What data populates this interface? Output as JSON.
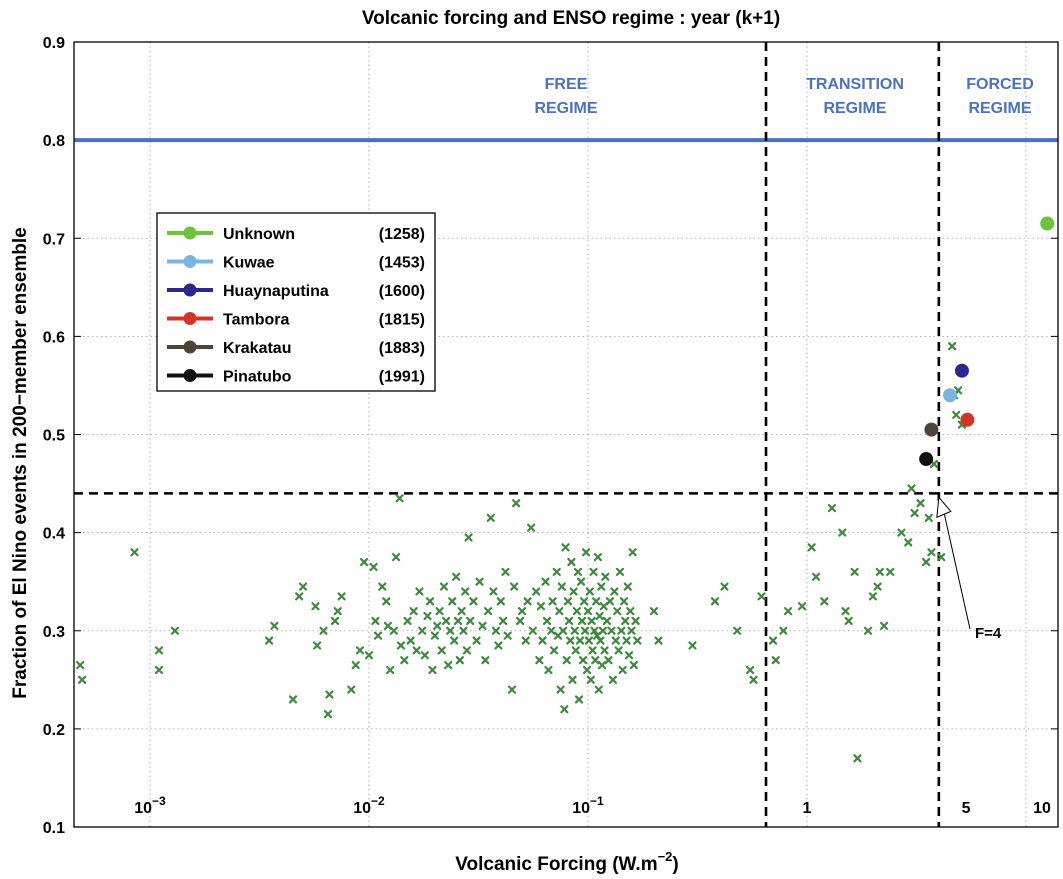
{
  "chart_data": {
    "type": "scatter",
    "title": "Volcanic forcing and ENSO regime : year (k+1)",
    "xlabel_main": "Volcanic Forcing (W.m",
    "xlabel_sup": "−2",
    "xlabel_close": ")",
    "ylabel": "Fraction of El Nino events in 200−member ensemble",
    "x_scale": "log",
    "xlim": [
      0.00045,
      14
    ],
    "ylim": [
      0.1,
      0.9
    ],
    "yticks": [
      "0.1",
      "0.2",
      "0.3",
      "0.4",
      "0.5",
      "0.6",
      "0.7",
      "0.8",
      "0.9"
    ],
    "grid": "dotted",
    "x_decade_labels": [
      {
        "text": "10",
        "sup": "−3",
        "x": 0.001
      },
      {
        "text": "10",
        "sup": "−2",
        "x": 0.01
      },
      {
        "text": "10",
        "sup": "−1",
        "x": 0.1
      },
      {
        "text": "1",
        "sup": "",
        "x": 1.0
      },
      {
        "text": "5",
        "sup": "",
        "x": 5.0
      },
      {
        "text": "10",
        "sup": "",
        "x": 10.0
      }
    ],
    "regimes": [
      {
        "line1": "FREE",
        "line2": "REGIME"
      },
      {
        "line1": "TRANSITION",
        "line2": "REGIME"
      },
      {
        "line1": "FORCED",
        "line2": "REGIME"
      }
    ],
    "reference_lines": {
      "horizontal_solid_y": 0.8,
      "horizontal_dashed_y": 0.44,
      "vertical_dashed_x": [
        0.65,
        4.0
      ]
    },
    "annotation": {
      "text": "F=4",
      "x": 4.0,
      "y": 0.44
    },
    "legend": {
      "placement": "left",
      "entries": [
        {
          "name": "Unknown",
          "year": "(1258)",
          "color": "#6cc33c",
          "x": 12.5,
          "y": 0.715
        },
        {
          "name": "Kuwae",
          "year": "(1453)",
          "color": "#7ab4e0",
          "x": 4.5,
          "y": 0.54
        },
        {
          "name": "Huaynaputina",
          "year": "(1600)",
          "color": "#2a2890",
          "x": 5.1,
          "y": 0.565
        },
        {
          "name": "Tambora",
          "year": "(1815)",
          "color": "#d23528",
          "x": 5.4,
          "y": 0.515
        },
        {
          "name": "Krakatau",
          "year": "(1883)",
          "color": "#4e4338",
          "x": 3.7,
          "y": 0.505
        },
        {
          "name": "Pinatubo",
          "year": "(1991)",
          "color": "#111111",
          "x": 3.5,
          "y": 0.475
        }
      ]
    },
    "colors": {
      "scatter": "#3d8a3d",
      "ref_line": "#4a72c0",
      "regime_text": "#4a72c0",
      "axis": "#000000"
    },
    "scatter_points": [
      [
        0.00048,
        0.265
      ],
      [
        0.00049,
        0.25
      ],
      [
        0.00085,
        0.38
      ],
      [
        0.0011,
        0.28
      ],
      [
        0.0011,
        0.26
      ],
      [
        0.0013,
        0.3
      ],
      [
        0.0035,
        0.29
      ],
      [
        0.0037,
        0.305
      ],
      [
        0.0045,
        0.23
      ],
      [
        0.0048,
        0.335
      ],
      [
        0.005,
        0.345
      ],
      [
        0.0057,
        0.325
      ],
      [
        0.0058,
        0.285
      ],
      [
        0.0062,
        0.3
      ],
      [
        0.0065,
        0.215
      ],
      [
        0.0066,
        0.235
      ],
      [
        0.007,
        0.31
      ],
      [
        0.0072,
        0.32
      ],
      [
        0.0075,
        0.335
      ],
      [
        0.0083,
        0.24
      ],
      [
        0.0087,
        0.265
      ],
      [
        0.0091,
        0.28
      ],
      [
        0.0095,
        0.37
      ],
      [
        0.01,
        0.275
      ],
      [
        0.0105,
        0.365
      ],
      [
        0.0107,
        0.31
      ],
      [
        0.011,
        0.295
      ],
      [
        0.0115,
        0.345
      ],
      [
        0.012,
        0.33
      ],
      [
        0.0122,
        0.305
      ],
      [
        0.0125,
        0.26
      ],
      [
        0.013,
        0.3
      ],
      [
        0.0133,
        0.375
      ],
      [
        0.0138,
        0.435
      ],
      [
        0.014,
        0.285
      ],
      [
        0.0145,
        0.27
      ],
      [
        0.015,
        0.31
      ],
      [
        0.0155,
        0.29
      ],
      [
        0.016,
        0.32
      ],
      [
        0.0165,
        0.28
      ],
      [
        0.017,
        0.34
      ],
      [
        0.0175,
        0.3
      ],
      [
        0.018,
        0.275
      ],
      [
        0.0185,
        0.315
      ],
      [
        0.019,
        0.33
      ],
      [
        0.0195,
        0.26
      ],
      [
        0.02,
        0.295
      ],
      [
        0.0205,
        0.305
      ],
      [
        0.021,
        0.32
      ],
      [
        0.0215,
        0.28
      ],
      [
        0.022,
        0.345
      ],
      [
        0.0225,
        0.31
      ],
      [
        0.023,
        0.265
      ],
      [
        0.0235,
        0.3
      ],
      [
        0.024,
        0.33
      ],
      [
        0.0245,
        0.29
      ],
      [
        0.025,
        0.355
      ],
      [
        0.0255,
        0.31
      ],
      [
        0.026,
        0.27
      ],
      [
        0.0265,
        0.32
      ],
      [
        0.027,
        0.3
      ],
      [
        0.0275,
        0.34
      ],
      [
        0.028,
        0.28
      ],
      [
        0.0285,
        0.395
      ],
      [
        0.029,
        0.31
      ],
      [
        0.03,
        0.33
      ],
      [
        0.031,
        0.29
      ],
      [
        0.032,
        0.35
      ],
      [
        0.033,
        0.305
      ],
      [
        0.034,
        0.27
      ],
      [
        0.035,
        0.32
      ],
      [
        0.036,
        0.415
      ],
      [
        0.037,
        0.34
      ],
      [
        0.038,
        0.3
      ],
      [
        0.039,
        0.285
      ],
      [
        0.04,
        0.33
      ],
      [
        0.041,
        0.31
      ],
      [
        0.042,
        0.36
      ],
      [
        0.043,
        0.295
      ],
      [
        0.045,
        0.24
      ],
      [
        0.046,
        0.345
      ],
      [
        0.047,
        0.43
      ],
      [
        0.049,
        0.31
      ],
      [
        0.05,
        0.32
      ],
      [
        0.052,
        0.29
      ],
      [
        0.053,
        0.33
      ],
      [
        0.055,
        0.405
      ],
      [
        0.056,
        0.3
      ],
      [
        0.058,
        0.34
      ],
      [
        0.06,
        0.27
      ],
      [
        0.061,
        0.325
      ],
      [
        0.062,
        0.29
      ],
      [
        0.064,
        0.35
      ],
      [
        0.065,
        0.31
      ],
      [
        0.066,
        0.26
      ],
      [
        0.068,
        0.3
      ],
      [
        0.069,
        0.33
      ],
      [
        0.07,
        0.28
      ],
      [
        0.072,
        0.36
      ],
      [
        0.073,
        0.295
      ],
      [
        0.074,
        0.32
      ],
      [
        0.075,
        0.24
      ],
      [
        0.076,
        0.345
      ],
      [
        0.077,
        0.3
      ],
      [
        0.078,
        0.22
      ],
      [
        0.079,
        0.385
      ],
      [
        0.08,
        0.27
      ],
      [
        0.081,
        0.33
      ],
      [
        0.082,
        0.31
      ],
      [
        0.083,
        0.29
      ],
      [
        0.084,
        0.37
      ],
      [
        0.085,
        0.25
      ],
      [
        0.086,
        0.34
      ],
      [
        0.087,
        0.3
      ],
      [
        0.088,
        0.28
      ],
      [
        0.089,
        0.32
      ],
      [
        0.09,
        0.36
      ],
      [
        0.091,
        0.23
      ],
      [
        0.092,
        0.29
      ],
      [
        0.093,
        0.35
      ],
      [
        0.094,
        0.31
      ],
      [
        0.095,
        0.27
      ],
      [
        0.096,
        0.33
      ],
      [
        0.097,
        0.3
      ],
      [
        0.098,
        0.38
      ],
      [
        0.099,
        0.26
      ],
      [
        0.1,
        0.32
      ],
      [
        0.101,
        0.29
      ],
      [
        0.102,
        0.34
      ],
      [
        0.103,
        0.25
      ],
      [
        0.104,
        0.31
      ],
      [
        0.105,
        0.28
      ],
      [
        0.106,
        0.36
      ],
      [
        0.107,
        0.3
      ],
      [
        0.108,
        0.27
      ],
      [
        0.109,
        0.33
      ],
      [
        0.11,
        0.295
      ],
      [
        0.111,
        0.375
      ],
      [
        0.112,
        0.24
      ],
      [
        0.113,
        0.315
      ],
      [
        0.114,
        0.29
      ],
      [
        0.115,
        0.345
      ],
      [
        0.116,
        0.265
      ],
      [
        0.117,
        0.3
      ],
      [
        0.118,
        0.325
      ],
      [
        0.119,
        0.28
      ],
      [
        0.12,
        0.355
      ],
      [
        0.122,
        0.31
      ],
      [
        0.124,
        0.27
      ],
      [
        0.126,
        0.33
      ],
      [
        0.128,
        0.3
      ],
      [
        0.13,
        0.25
      ],
      [
        0.132,
        0.34
      ],
      [
        0.134,
        0.29
      ],
      [
        0.136,
        0.32
      ],
      [
        0.138,
        0.28
      ],
      [
        0.14,
        0.36
      ],
      [
        0.142,
        0.3
      ],
      [
        0.144,
        0.26
      ],
      [
        0.146,
        0.33
      ],
      [
        0.148,
        0.31
      ],
      [
        0.15,
        0.29
      ],
      [
        0.152,
        0.345
      ],
      [
        0.154,
        0.275
      ],
      [
        0.156,
        0.32
      ],
      [
        0.158,
        0.3
      ],
      [
        0.16,
        0.38
      ],
      [
        0.162,
        0.265
      ],
      [
        0.165,
        0.31
      ],
      [
        0.168,
        0.29
      ],
      [
        0.2,
        0.32
      ],
      [
        0.21,
        0.29
      ],
      [
        0.3,
        0.285
      ],
      [
        0.38,
        0.33
      ],
      [
        0.42,
        0.345
      ],
      [
        0.48,
        0.3
      ],
      [
        0.55,
        0.26
      ],
      [
        0.57,
        0.25
      ],
      [
        0.62,
        0.335
      ],
      [
        0.7,
        0.29
      ],
      [
        0.72,
        0.27
      ],
      [
        0.78,
        0.3
      ],
      [
        0.82,
        0.32
      ],
      [
        0.95,
        0.325
      ],
      [
        1.05,
        0.385
      ],
      [
        1.1,
        0.355
      ],
      [
        1.2,
        0.33
      ],
      [
        1.3,
        0.425
      ],
      [
        1.45,
        0.4
      ],
      [
        1.5,
        0.32
      ],
      [
        1.55,
        0.31
      ],
      [
        1.65,
        0.36
      ],
      [
        1.7,
        0.17
      ],
      [
        1.9,
        0.3
      ],
      [
        2.0,
        0.335
      ],
      [
        2.1,
        0.345
      ],
      [
        2.15,
        0.36
      ],
      [
        2.25,
        0.305
      ],
      [
        2.4,
        0.36
      ],
      [
        2.7,
        0.4
      ],
      [
        2.9,
        0.39
      ],
      [
        3.0,
        0.445
      ],
      [
        3.1,
        0.42
      ],
      [
        3.3,
        0.43
      ],
      [
        3.5,
        0.37
      ],
      [
        3.6,
        0.415
      ],
      [
        3.7,
        0.38
      ],
      [
        3.8,
        0.47
      ],
      [
        4.1,
        0.375
      ],
      [
        4.6,
        0.59
      ],
      [
        4.7,
        0.54
      ],
      [
        4.8,
        0.52
      ],
      [
        4.9,
        0.545
      ],
      [
        5.1,
        0.51
      ]
    ]
  }
}
